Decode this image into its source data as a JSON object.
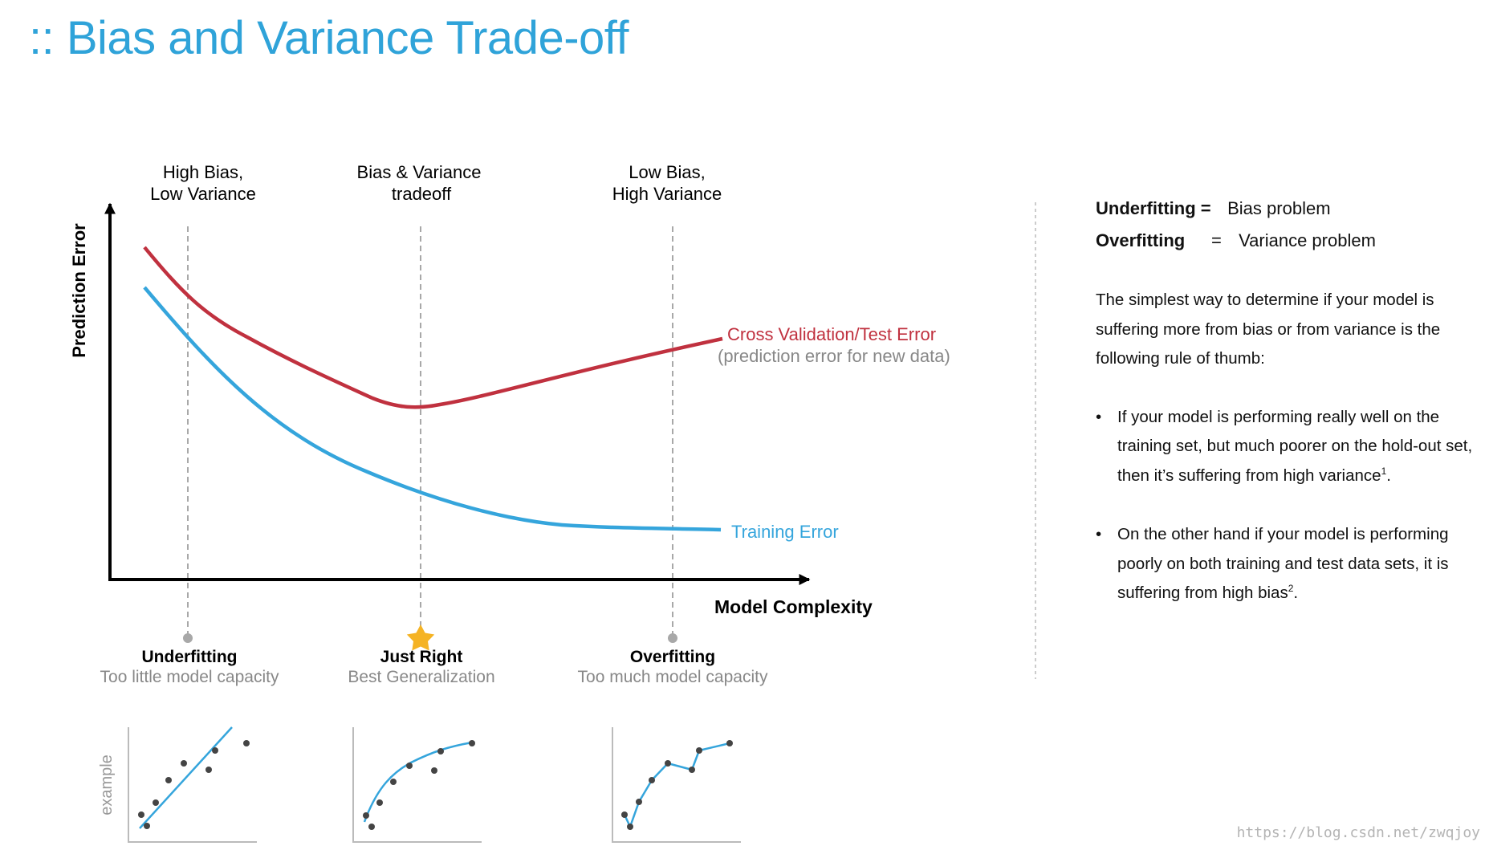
{
  "title": ":: Bias and Variance Trade-off",
  "diagram": {
    "y_axis_label": "Prediction Error",
    "x_axis_label": "Model Complexity",
    "top_labels": [
      {
        "line1": "High Bias,",
        "line2": "Low Variance"
      },
      {
        "line1": "Bias & Variance",
        "line2": "tradeoff"
      },
      {
        "line1": "Low Bias,",
        "line2": "High Variance"
      }
    ],
    "curves": {
      "test_error": {
        "label": "Cross Validation/Test Error",
        "sublabel": "(prediction error for new data)",
        "color": "#c0313f"
      },
      "training_error": {
        "label": "Training Error",
        "color": "#35a5dc"
      }
    },
    "regimes": [
      {
        "name": "Underfitting",
        "desc": "Too little model capacity",
        "marker": "dot"
      },
      {
        "name": "Just Right",
        "desc": "Best Generalization",
        "marker": "star"
      },
      {
        "name": "Overfitting",
        "desc": "Too much model capacity",
        "marker": "dot"
      }
    ],
    "example_label": "example"
  },
  "rules": {
    "underfitting_term": "Underfitting",
    "underfitting_eq": "=",
    "underfitting_def": "Bias problem",
    "overfitting_term": "Overfitting",
    "overfitting_eq": "=",
    "overfitting_def": "Variance problem",
    "intro": "The simplest way to determine if your model is suffering more from bias or from variance is the following rule of thumb:",
    "bullets": [
      {
        "text": "If your model is performing really well on the training set, but much poorer on the hold-out set, then it’s suffering from high variance",
        "footnote": "1",
        "end": "."
      },
      {
        "text": "On the other hand if your model is performing poorly on both training and test data sets, it is suffering from high bias",
        "footnote": "2",
        "end": "."
      }
    ],
    "bullet_symbol": "•"
  },
  "watermark": "https://blog.csdn.net/zwqjoy",
  "colors": {
    "title": "#2fa3d9",
    "test_curve": "#c0313f",
    "train_curve": "#35a5dc",
    "star": "#f5b324",
    "guide": "#a8a8a8",
    "point": "#444444"
  }
}
